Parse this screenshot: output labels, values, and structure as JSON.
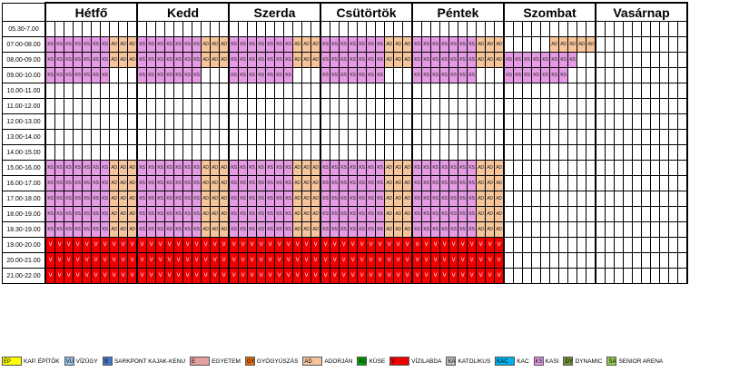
{
  "days": [
    "Hétfő",
    "Kedd",
    "Szerda",
    "Csütörtök",
    "Péntek",
    "Szombat",
    "Vasárnap"
  ],
  "time_slots": [
    "05.30-7.00",
    "07.00-08.00",
    "08.00-09.00",
    "09.00-10.00",
    "10.00-11.00",
    "11.00-12.00",
    "12.00-13.00",
    "13.00-14.00",
    "14.00-15.00",
    "15.00-16.00",
    "16.00-17.00",
    "17.00-18.00",
    "18.00-19.00",
    "18.30-19.00",
    "19.00-20.00",
    "20.00-21.00",
    "21.00-22.00"
  ],
  "lanes_per_day": 10,
  "schedule": {
    "weekday_0700": "KS KS KS KS KS KS KS AD AD AD",
    "weekday_0800": "KS KS KS KS KS KS KS AD AD AD",
    "weekday_0900": "KS KS KS KS KS KS KS - - -",
    "weekday_afternoon": "KS KS KS KS KS KS KS AD AD AD",
    "weekday_evening": "V V V V V V V V V V",
    "saturday_0700": "- - - - - AD AD AD AD AD",
    "saturday_0800": "KS KS KS KS KS KS KS KS - -",
    "saturday_0900": "KS KS KS KS KS KS KS - - -"
  },
  "legend": [
    {
      "code": "ÉP",
      "label": "KAP. ÉPÍTŐK",
      "color": "#ffff00",
      "wide": true
    },
    {
      "code": "VU",
      "label": "VÍZÜGY",
      "color": "#9dc3e6",
      "wide": false
    },
    {
      "code": "S",
      "label": "SARKPONT KAJAK-KENU",
      "color": "#4472c4",
      "wide": false
    },
    {
      "code": "E",
      "label": "EGYETEM",
      "color": "#e6a0a0",
      "wide": true
    },
    {
      "code": "GY",
      "label": "GYÓGYÚSZÁS",
      "color": "#e46c0a",
      "wide": false
    },
    {
      "code": "AD",
      "label": "ADORJÁN",
      "color": "#f7c59c",
      "wide": true
    },
    {
      "code": "KÜ",
      "label": "KÜSE",
      "color": "#00a000",
      "wide": false
    },
    {
      "code": "V",
      "label": "VÍZILABDA",
      "color": "#f00000",
      "wide": true
    },
    {
      "code": "KA",
      "label": "KATOLIKUS",
      "color": "#c0c0c0",
      "wide": false
    },
    {
      "code": "KAC",
      "label": "KAC",
      "color": "#00b0f0",
      "wide": true
    },
    {
      "code": "KS",
      "label": "KASI",
      "color": "#e59be3",
      "wide": false
    },
    {
      "code": "DY",
      "label": "DYNAMIC",
      "color": "#76923c",
      "wide": false
    },
    {
      "code": "SA",
      "label": "SENIOR ARENA",
      "color": "#92d050",
      "wide": false
    }
  ]
}
